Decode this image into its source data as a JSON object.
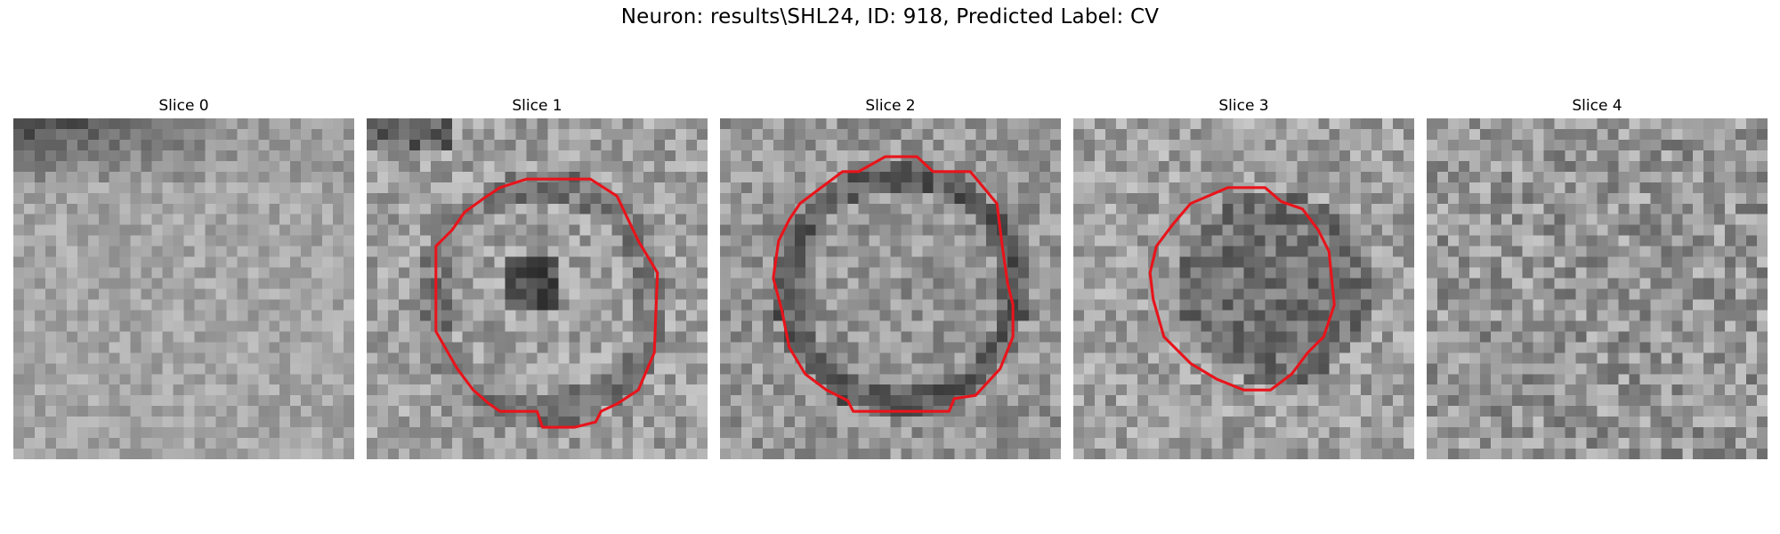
{
  "figure": {
    "title": "Neuron: results\\SHL24, ID: 918, Predicted Label: CV",
    "colormap": "gray",
    "contour_color": "#e8141b"
  },
  "slices": [
    {
      "label": "Slice 0",
      "has_contour": false
    },
    {
      "label": "Slice 1",
      "has_contour": true
    },
    {
      "label": "Slice 2",
      "has_contour": true
    },
    {
      "label": "Slice 3",
      "has_contour": true
    },
    {
      "label": "Slice 4",
      "has_contour": false
    }
  ]
}
